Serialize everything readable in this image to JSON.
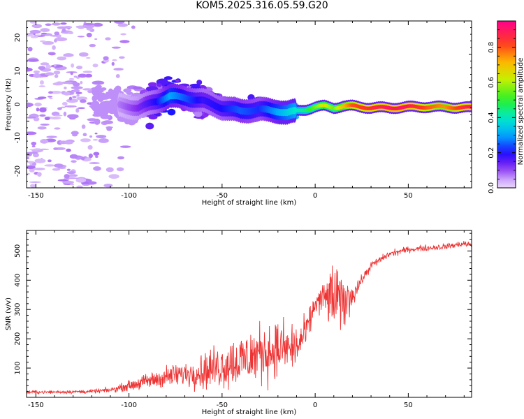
{
  "title": "KOM5.2025.316.05.59.G20",
  "chart_data": [
    {
      "type": "heatmap",
      "title": "KOM5.2025.316.05.59.G20",
      "xlabel": "Height of straight line (km)",
      "ylabel": "Frequency (Hz)",
      "xlim": [
        -155,
        84
      ],
      "ylim": [
        -25,
        25
      ],
      "x_ticks": [
        -150,
        -100,
        -50,
        0,
        50
      ],
      "y_ticks": [
        -20,
        -10,
        0,
        10,
        20
      ],
      "description_track": {
        "x": [
          -110,
          -95,
          -85,
          -78,
          -70,
          -60,
          -50,
          -40,
          -30,
          -20,
          -15,
          -10,
          -5,
          0,
          5,
          10,
          15,
          20,
          30,
          40,
          50,
          60,
          70,
          84
        ],
        "freq_hz": [
          0,
          -1,
          1,
          2.5,
          2,
          1,
          -1,
          -2,
          -1.5,
          -2,
          -2.5,
          -2,
          -1.5,
          -0.8,
          -0.5,
          -1,
          -0.5,
          -0.5,
          -1,
          -1,
          -0.8,
          -0.7,
          -0.8,
          -1
        ],
        "amplitude": [
          0.05,
          0.12,
          0.2,
          0.3,
          0.25,
          0.18,
          0.2,
          0.25,
          0.22,
          0.3,
          0.35,
          0.4,
          0.45,
          0.55,
          0.65,
          0.55,
          0.7,
          0.8,
          0.85,
          0.9,
          0.9,
          0.8,
          0.75,
          0.9
        ]
      },
      "colorbar": {
        "label": "Normalized spectral amplitude",
        "ticks": [
          0.0,
          0.2,
          0.4,
          0.6,
          0.8
        ],
        "range": [
          0.0,
          0.95
        ]
      }
    },
    {
      "type": "line",
      "xlabel": "Height of straight line (km)",
      "ylabel": "SNR (v/v)",
      "xlim": [
        -155,
        84
      ],
      "ylim": [
        0,
        570
      ],
      "x_ticks": [
        -150,
        -100,
        -50,
        0,
        50
      ],
      "y_ticks": [
        100,
        200,
        300,
        400,
        500
      ],
      "color": "#ee3333",
      "series": [
        {
          "name": "SNR",
          "x": [
            -155,
            -140,
            -120,
            -110,
            -100,
            -90,
            -80,
            -70,
            -60,
            -50,
            -40,
            -30,
            -20,
            -10,
            -5,
            0,
            5,
            10,
            15,
            20,
            25,
            30,
            40,
            50,
            60,
            70,
            80,
            84
          ],
          "center": [
            18,
            18,
            20,
            25,
            40,
            55,
            70,
            80,
            90,
            110,
            125,
            150,
            165,
            170,
            220,
            320,
            340,
            340,
            320,
            350,
            400,
            450,
            490,
            505,
            510,
            515,
            525,
            520
          ],
          "spread": [
            8,
            8,
            10,
            12,
            25,
            40,
            55,
            60,
            90,
            120,
            140,
            150,
            140,
            120,
            80,
            50,
            100,
            180,
            140,
            60,
            25,
            20,
            18,
            15,
            15,
            15,
            15,
            15
          ]
        }
      ]
    }
  ]
}
